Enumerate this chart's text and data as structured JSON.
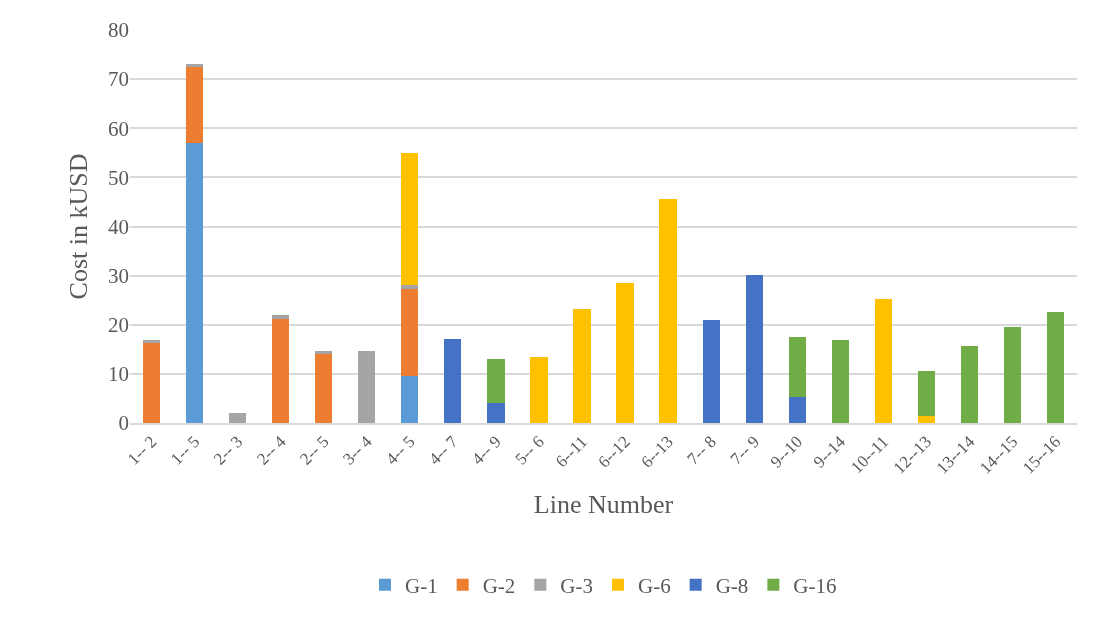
{
  "chart_data": {
    "type": "bar",
    "stacked": true,
    "xlabel": "Line Number",
    "ylabel": "Cost in kUSD",
    "categories": [
      "1-- 2",
      "1-- 5",
      "2-- 3",
      "2-- 4",
      "2-- 5",
      "3-- 4",
      "4-- 5",
      "4-- 7",
      "4-- 9",
      "5-- 6",
      "6--11",
      "6--12",
      "6--13",
      "7-- 8",
      "7-- 9",
      "9--10",
      "9--14",
      "10--11",
      "12--13",
      "13--14",
      "14--15",
      "15--16"
    ],
    "series": [
      {
        "name": "G-1",
        "color": "#5b9bd5",
        "values": [
          null,
          57,
          null,
          null,
          null,
          null,
          9.5,
          null,
          null,
          null,
          null,
          null,
          null,
          null,
          null,
          null,
          null,
          null,
          null,
          null,
          null,
          null
        ]
      },
      {
        "name": "G-2",
        "color": "#ed7d31",
        "values": [
          16.3,
          15.5,
          null,
          21.2,
          14.1,
          null,
          17.7,
          null,
          null,
          null,
          null,
          null,
          null,
          null,
          null,
          null,
          null,
          null,
          null,
          null,
          null,
          null
        ]
      },
      {
        "name": "G-3",
        "color": "#a5a5a5",
        "values": [
          0.5,
          0.5,
          2,
          0.8,
          0.5,
          14.6,
          0.8,
          null,
          null,
          null,
          null,
          null,
          null,
          null,
          null,
          null,
          null,
          null,
          null,
          null,
          null,
          null
        ]
      },
      {
        "name": "G-6",
        "color": "#ffc000",
        "values": [
          null,
          null,
          null,
          null,
          null,
          null,
          27,
          null,
          null,
          13.4,
          23.2,
          28.5,
          45.6,
          null,
          null,
          null,
          null,
          25.3,
          1.5,
          null,
          null,
          null
        ]
      },
      {
        "name": "G-8",
        "color": "#4472c4",
        "values": [
          null,
          null,
          null,
          null,
          null,
          null,
          null,
          17,
          4,
          null,
          null,
          null,
          null,
          20.9,
          30.1,
          5.3,
          null,
          null,
          null,
          null,
          null,
          null
        ]
      },
      {
        "name": "G-16",
        "color": "#70ad47",
        "values": [
          null,
          null,
          null,
          null,
          null,
          null,
          null,
          null,
          9,
          null,
          null,
          null,
          null,
          null,
          null,
          12.2,
          16.9,
          null,
          9,
          15.7,
          19.6,
          22.6
        ]
      }
    ],
    "ylim": [
      0,
      80
    ],
    "yticks": [
      0,
      10,
      20,
      30,
      40,
      50,
      60,
      70,
      80
    ],
    "grid": "y",
    "legend": "bottom"
  }
}
